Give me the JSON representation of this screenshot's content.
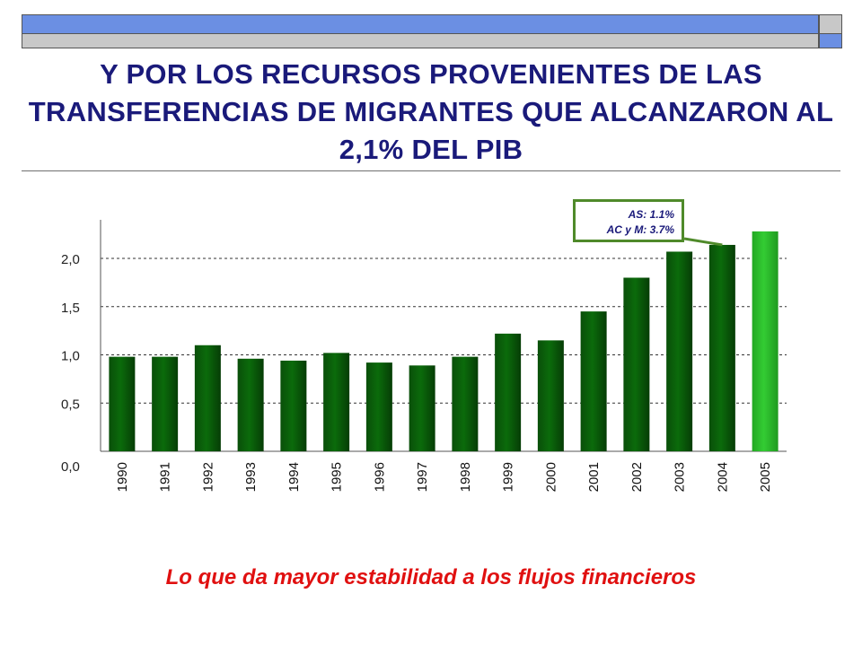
{
  "header": {
    "title": "Y POR LOS RECURSOS PROVENIENTES DE LAS TRANSFERENCIAS DE MIGRANTES QUE ALCANZARON AL 2,1% DEL PIB"
  },
  "callout": {
    "line1": "AS: 1.1%",
    "line2": "AC y M: 3.7%"
  },
  "footer": {
    "subtitle": "Lo que da mayor estabilidad a los flujos financieros"
  },
  "colors": {
    "title": "#1a1a7a",
    "subtitle": "#e01010",
    "bar_dark_green": "#0b6b0b",
    "bar_highlight_green": "#33cc33",
    "callout_border": "#4f8a2a"
  },
  "chart_data": {
    "type": "bar",
    "categories": [
      "1990",
      "1991",
      "1992",
      "1993",
      "1994",
      "1995",
      "1996",
      "1997",
      "1998",
      "1999",
      "2000",
      "2001",
      "2002",
      "2003",
      "2004",
      "2005"
    ],
    "values": [
      0.98,
      0.98,
      1.1,
      0.96,
      0.94,
      1.02,
      0.92,
      0.89,
      0.98,
      1.22,
      1.15,
      1.45,
      1.8,
      2.07,
      2.14,
      2.28
    ],
    "highlight_category": "2005",
    "yticks": [
      "0,0",
      "0,5",
      "1,0",
      "1,5",
      "2,0"
    ],
    "ytick_values": [
      0,
      0.5,
      1.0,
      1.5,
      2.0
    ],
    "ylim": [
      0,
      2.4
    ],
    "grid": "dashed horizontal",
    "xlabel": "",
    "ylabel": ""
  }
}
